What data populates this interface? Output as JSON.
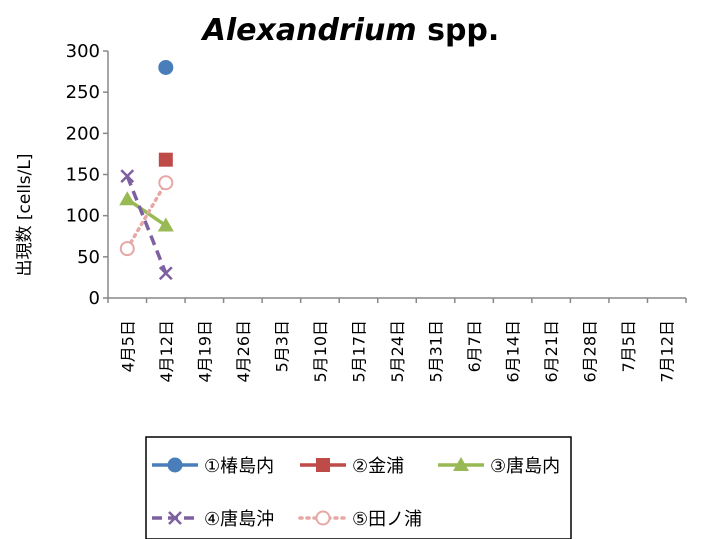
{
  "chart_data": {
    "type": "line",
    "title_italic": "Alexandrium",
    "title_rest": " spp.",
    "ylabel": "出現数 [cells/L]",
    "xlabel": "",
    "ylim": [
      0,
      300
    ],
    "yticks": [
      "300",
      "250",
      "200",
      "150",
      "100",
      "50",
      "0"
    ],
    "categories": [
      "4月5日",
      "4月12日",
      "4月19日",
      "4月26日",
      "5月3日",
      "5月10日",
      "5月17日",
      "5月24日",
      "5月31日",
      "6月7日",
      "6月14日",
      "6月21日",
      "6月28日",
      "7月5日",
      "7月12日"
    ],
    "series": [
      {
        "name": "①椿島内",
        "color": "#4a7ebb",
        "marker": "circle",
        "dash": "solid",
        "values": [
          null,
          280,
          null,
          null,
          null,
          null,
          null,
          null,
          null,
          null,
          null,
          null,
          null,
          null,
          null
        ]
      },
      {
        "name": "②金浦",
        "color": "#be4b48",
        "marker": "square",
        "dash": "solid",
        "values": [
          null,
          168,
          null,
          null,
          null,
          null,
          null,
          null,
          null,
          null,
          null,
          null,
          null,
          null,
          null
        ]
      },
      {
        "name": "③唐島内",
        "color": "#98b954",
        "marker": "triangle",
        "dash": "solid",
        "values": [
          120,
          88,
          null,
          null,
          null,
          null,
          null,
          null,
          null,
          null,
          null,
          null,
          null,
          null,
          null
        ]
      },
      {
        "name": "④唐島沖",
        "color": "#7d60a0",
        "marker": "x",
        "dash": "dash",
        "values": [
          148,
          30,
          null,
          null,
          null,
          null,
          null,
          null,
          null,
          null,
          null,
          null,
          null,
          null,
          null
        ]
      },
      {
        "name": "⑤田ノ浦",
        "color": "#e6a8a5",
        "marker": "open-circle",
        "dash": "dot",
        "values": [
          60,
          140,
          null,
          null,
          null,
          null,
          null,
          null,
          null,
          null,
          null,
          null,
          null,
          null,
          null
        ]
      }
    ],
    "legend_position": "bottom",
    "grid": false
  }
}
